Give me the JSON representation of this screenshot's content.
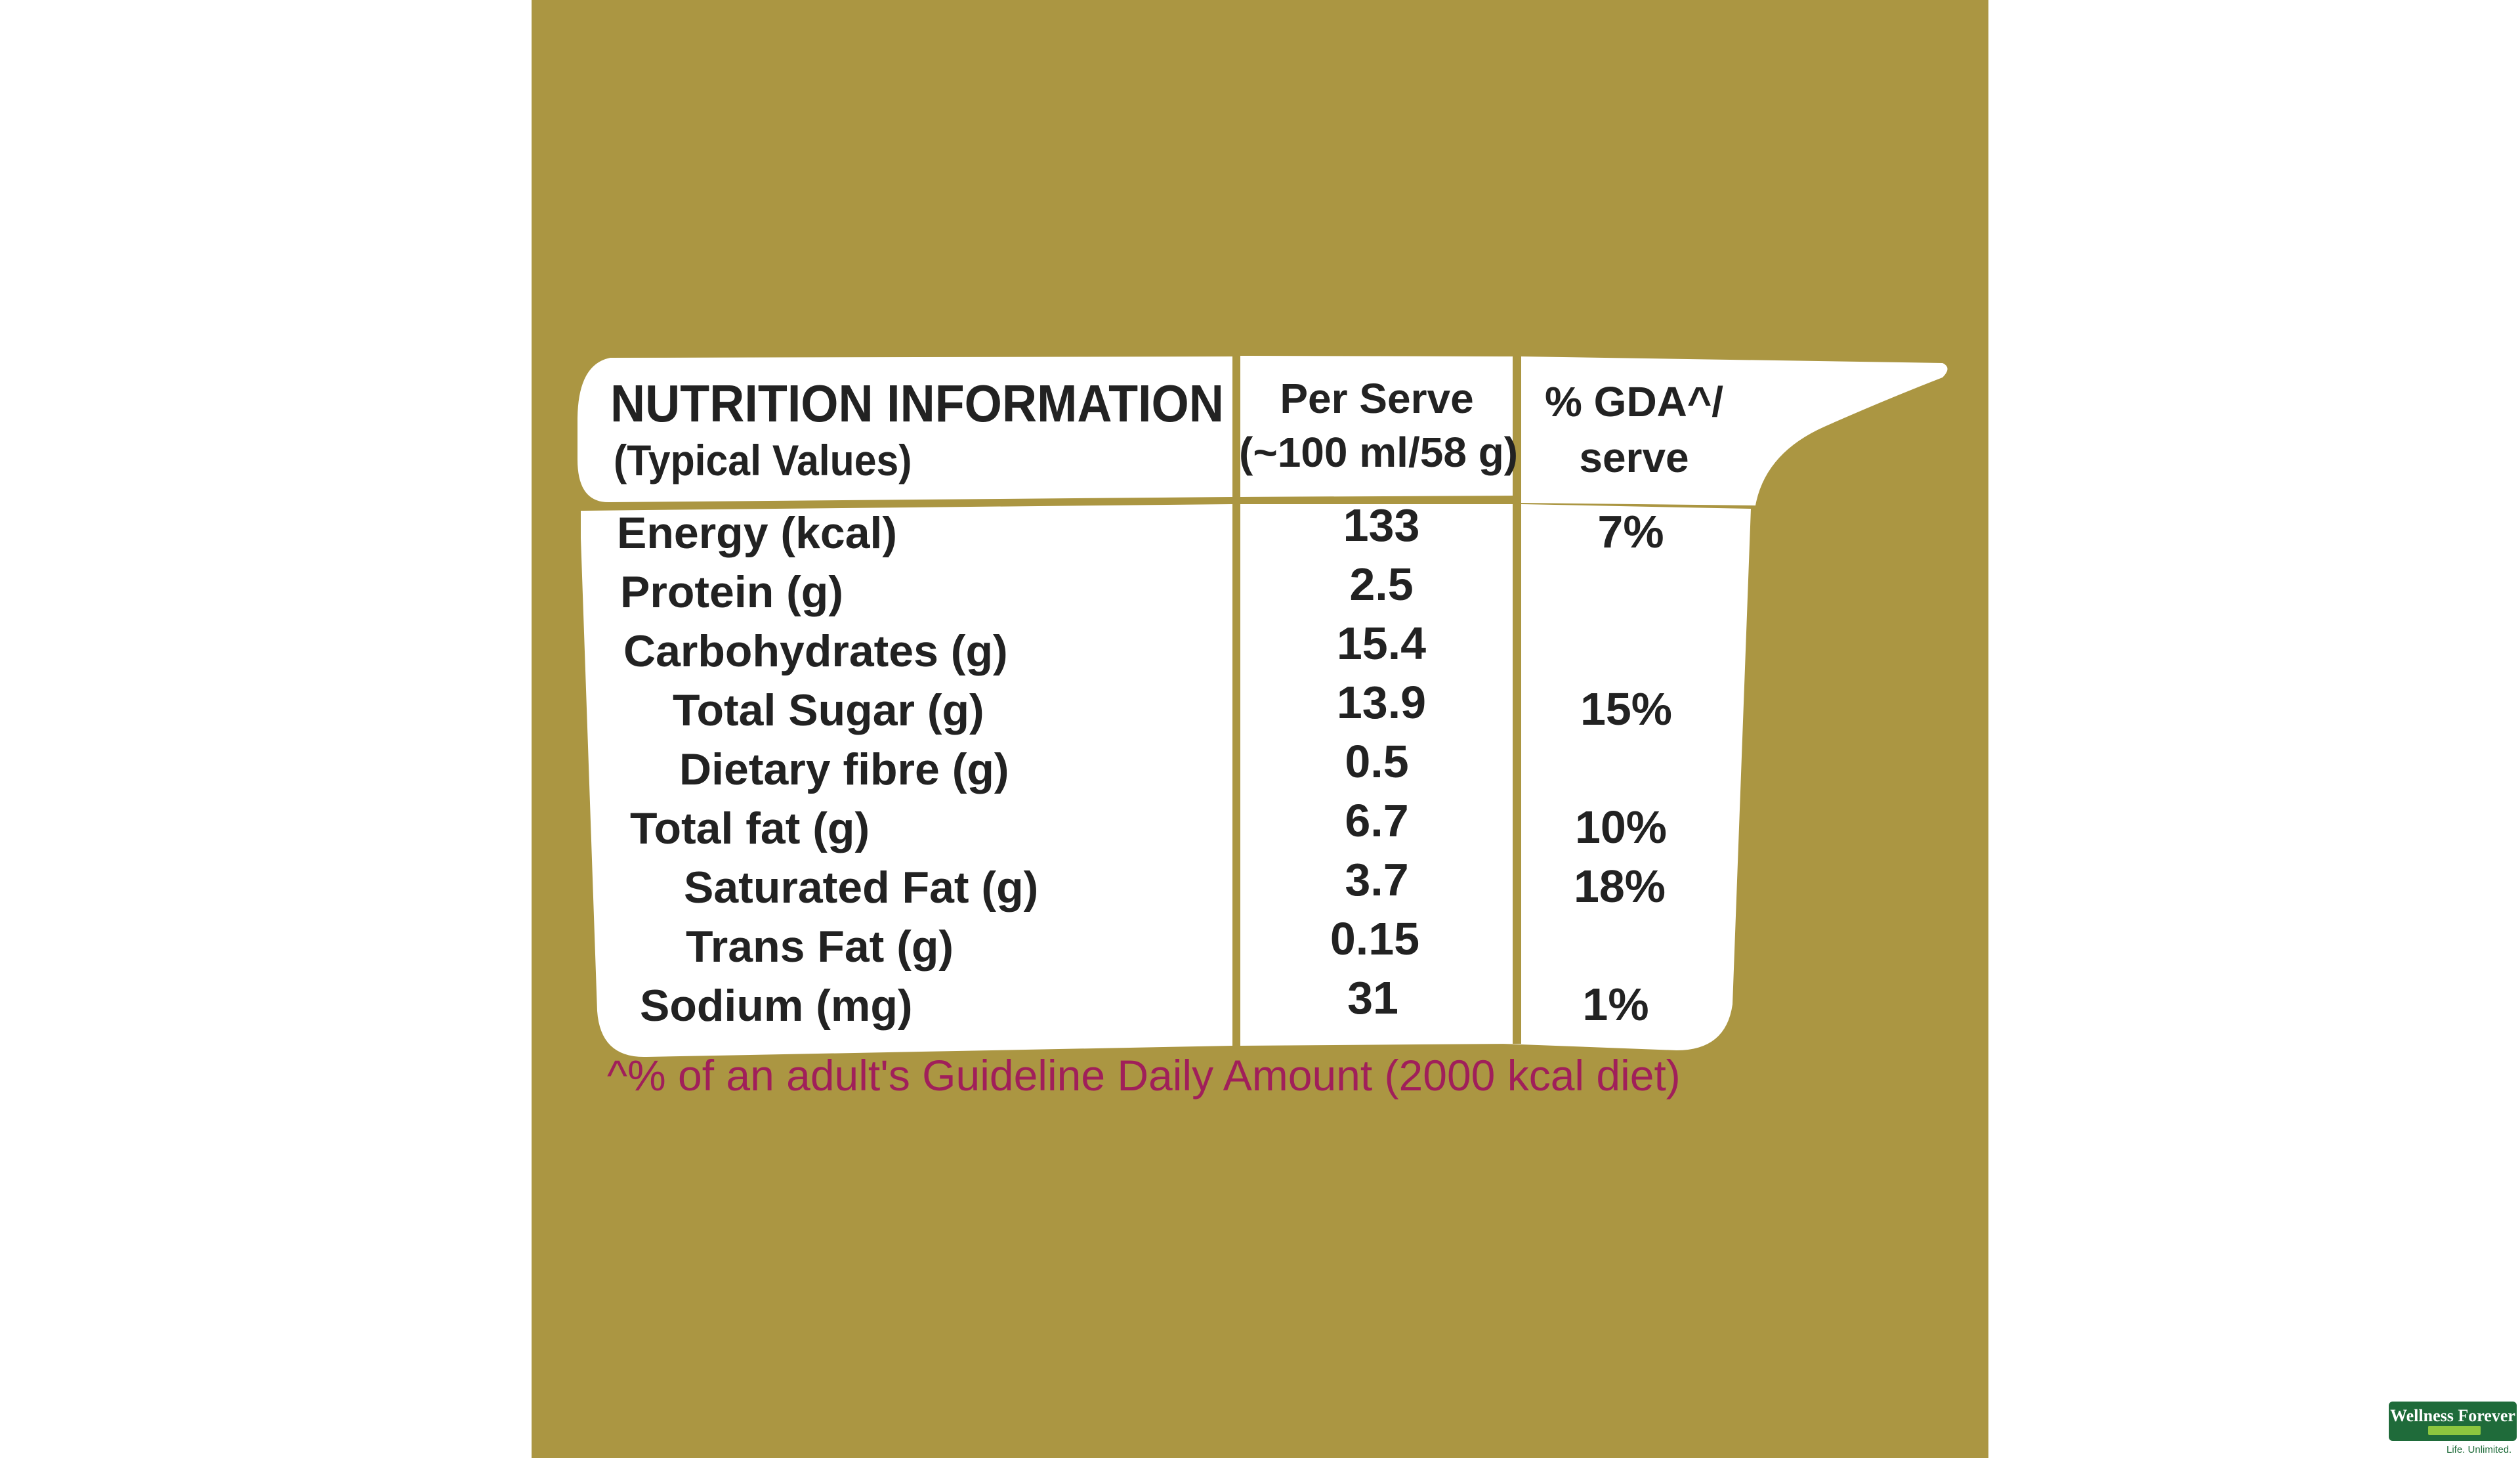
{
  "label": {
    "title": "NUTRITION INFORMATION",
    "subtitle": "(Typical Values)",
    "col_per_serve_line1": "Per Serve",
    "col_per_serve_line2": "(~100 ml/58 g)",
    "col_gda_line1": "% GDA^/",
    "col_gda_line2": "serve",
    "rows": [
      {
        "name": "Energy (kcal)",
        "value": "133",
        "gda": "7%"
      },
      {
        "name": "Protein (g)",
        "value": "2.5",
        "gda": ""
      },
      {
        "name": "Carbohydrates (g)",
        "value": "15.4",
        "gda": ""
      },
      {
        "name": "Total Sugar (g)",
        "value": "13.9",
        "gda": "15%"
      },
      {
        "name": "Dietary fibre (g)",
        "value": "0.5",
        "gda": ""
      },
      {
        "name": "Total fat (g)",
        "value": "6.7",
        "gda": "10%"
      },
      {
        "name": "Saturated Fat (g)",
        "value": "3.7",
        "gda": "18%"
      },
      {
        "name": "Trans Fat (g)",
        "value": "0.15",
        "gda": ""
      },
      {
        "name": "Sodium (mg)",
        "value": "31",
        "gda": "1%"
      }
    ],
    "footnote": "^% of an adult's Guideline Daily Amount (2000 kcal diet)"
  },
  "watermark": {
    "brand": "Wellness Forever",
    "tagline": "Life. Unlimited."
  },
  "colors": {
    "background": "#ab9642",
    "card": "#ffffff",
    "text": "#222222",
    "footnote": "#a01f5a",
    "logo_green": "#1f6b3a"
  }
}
